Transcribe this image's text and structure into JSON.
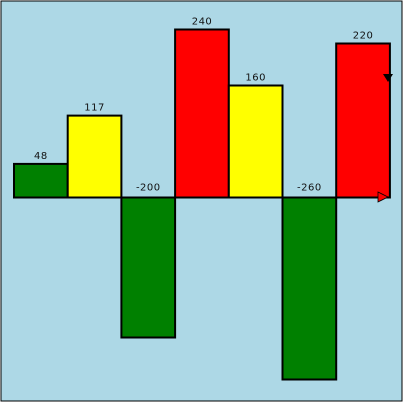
{
  "chart_data": {
    "type": "bar",
    "background": "#ADD8E6",
    "values": [
      48,
      117,
      -200,
      240,
      160,
      -260,
      220
    ],
    "colors": [
      "#008000",
      "#FFFF00",
      "#008000",
      "#FF0000",
      "#FFFF00",
      "#008000",
      "#FF0000"
    ],
    "labels": [
      "48",
      "117",
      "-200",
      "240",
      "160",
      "-260",
      "220"
    ],
    "ylim": [
      -260,
      240
    ],
    "grid": false,
    "legend": "none",
    "title": "",
    "xlabel": "",
    "ylabel": ""
  }
}
